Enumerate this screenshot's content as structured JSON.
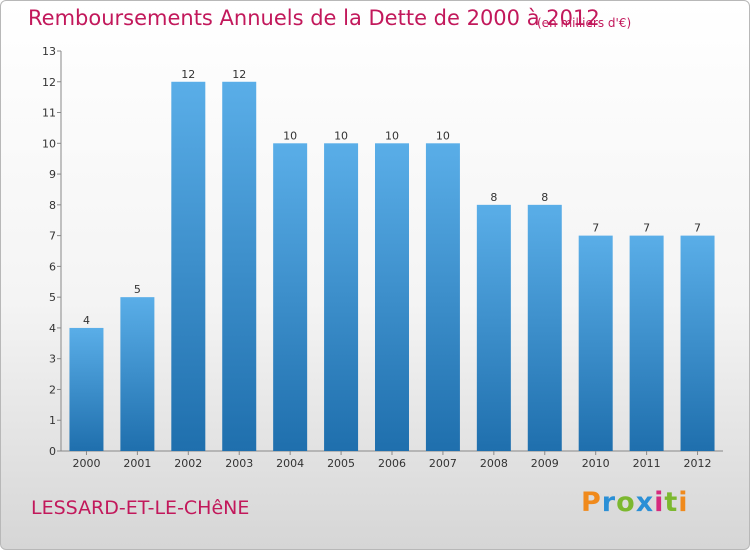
{
  "title": "Remboursements Annuels de la Dette de 2000 à 2012",
  "subtitle": "(en milliers d'€)",
  "commune": "LESSARD-ET-LE-CHêNE",
  "logo": {
    "text": "Proxiti",
    "colors": [
      "#f08a1c",
      "#2a8fd6",
      "#7cb82f",
      "#2a8fd6",
      "#d62a7e",
      "#7cb82f",
      "#f08a1c"
    ]
  },
  "colors": {
    "title": "#c2185b",
    "bar_top": "#5aaee8",
    "bar_bottom": "#1f6fad"
  },
  "chart_data": {
    "type": "bar",
    "categories": [
      "2000",
      "2001",
      "2002",
      "2003",
      "2004",
      "2005",
      "2006",
      "2007",
      "2008",
      "2009",
      "2010",
      "2011",
      "2012"
    ],
    "values": [
      4,
      5,
      12,
      12,
      10,
      10,
      10,
      10,
      8,
      8,
      7,
      7,
      7
    ],
    "data_labels": [
      "4",
      "5",
      "12",
      "12",
      "10",
      "10",
      "10",
      "10",
      "8",
      "8",
      "7",
      "7",
      "7"
    ],
    "y_ticks": [
      "0",
      "1",
      "2",
      "3",
      "4",
      "5",
      "6",
      "7",
      "8",
      "9",
      "10",
      "11",
      "12",
      "13"
    ],
    "ylim": [
      0,
      13
    ],
    "grid": false
  }
}
